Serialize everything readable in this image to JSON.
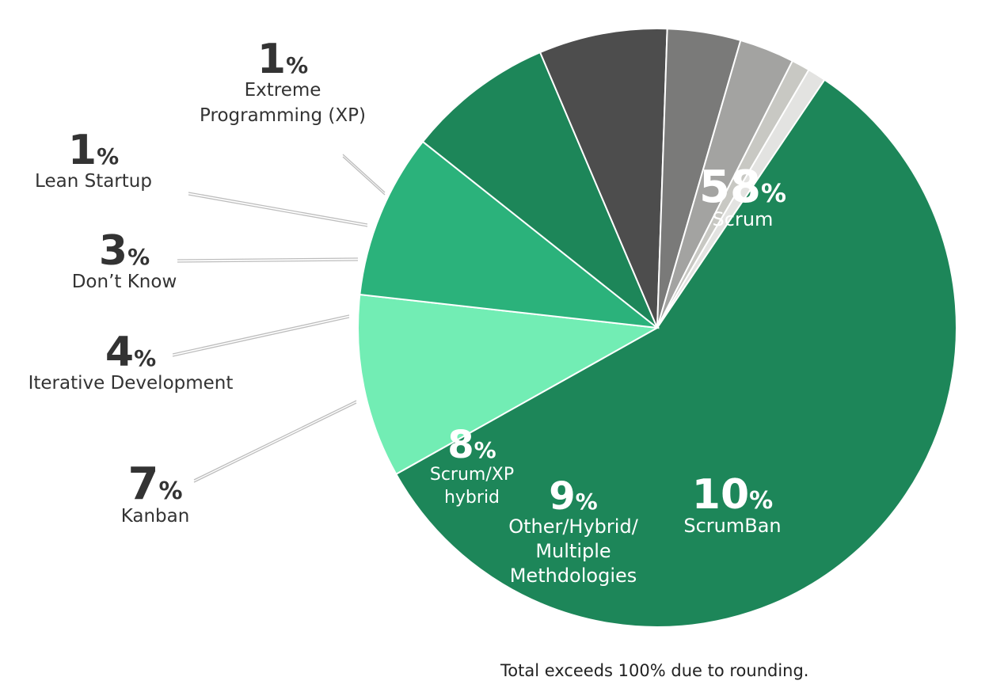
{
  "chart_data": {
    "type": "pie",
    "title": "",
    "start_angle_deg": -56,
    "direction": "clockwise",
    "slices": [
      {
        "label": "Scrum",
        "value": 58,
        "percent_text": "58",
        "color": "#1d8659",
        "label_color": "#ffffff",
        "lines": [
          "Scrum"
        ]
      },
      {
        "label": "ScrumBan",
        "value": 10,
        "percent_text": "10",
        "color": "#72edb4",
        "label_color": "#ffffff",
        "lines": [
          "ScrumBan"
        ]
      },
      {
        "label": "Other/Hybrid/Multiple Methdologies",
        "value": 9,
        "percent_text": "9",
        "color": "#2bb27b",
        "label_color": "#ffffff",
        "lines": [
          "Other/Hybrid/",
          "Multiple",
          "Methdologies"
        ]
      },
      {
        "label": "Scrum/XP hybrid",
        "value": 8,
        "percent_text": "8",
        "color": "#1d8659",
        "label_color": "#ffffff",
        "lines": [
          "Scrum/XP",
          "hybrid"
        ]
      },
      {
        "label": "Kanban",
        "value": 7,
        "percent_text": "7",
        "color": "#4d4d4d",
        "label_color": "#333333",
        "lines": [
          "Kanban"
        ]
      },
      {
        "label": "Iterative Development",
        "value": 4,
        "percent_text": "4",
        "color": "#7a7a79",
        "label_color": "#333333",
        "lines": [
          "Iterative Development"
        ]
      },
      {
        "label": "Don’t Know",
        "value": 3,
        "percent_text": "3",
        "color": "#a3a3a1",
        "label_color": "#333333",
        "lines": [
          "Don’t Know"
        ]
      },
      {
        "label": "Lean Startup",
        "value": 1,
        "percent_text": "1",
        "color": "#c8c8c3",
        "label_color": "#333333",
        "lines": [
          "Lean Startup"
        ]
      },
      {
        "label": "Extreme Programming (XP)",
        "value": 1,
        "percent_text": "1",
        "color": "#e3e3e1",
        "label_color": "#333333",
        "lines": [
          "Extreme",
          "Programming (XP)"
        ]
      }
    ],
    "percent_sign": "%",
    "legend": "none",
    "note": "Total exceeds 100% due to rounding."
  }
}
